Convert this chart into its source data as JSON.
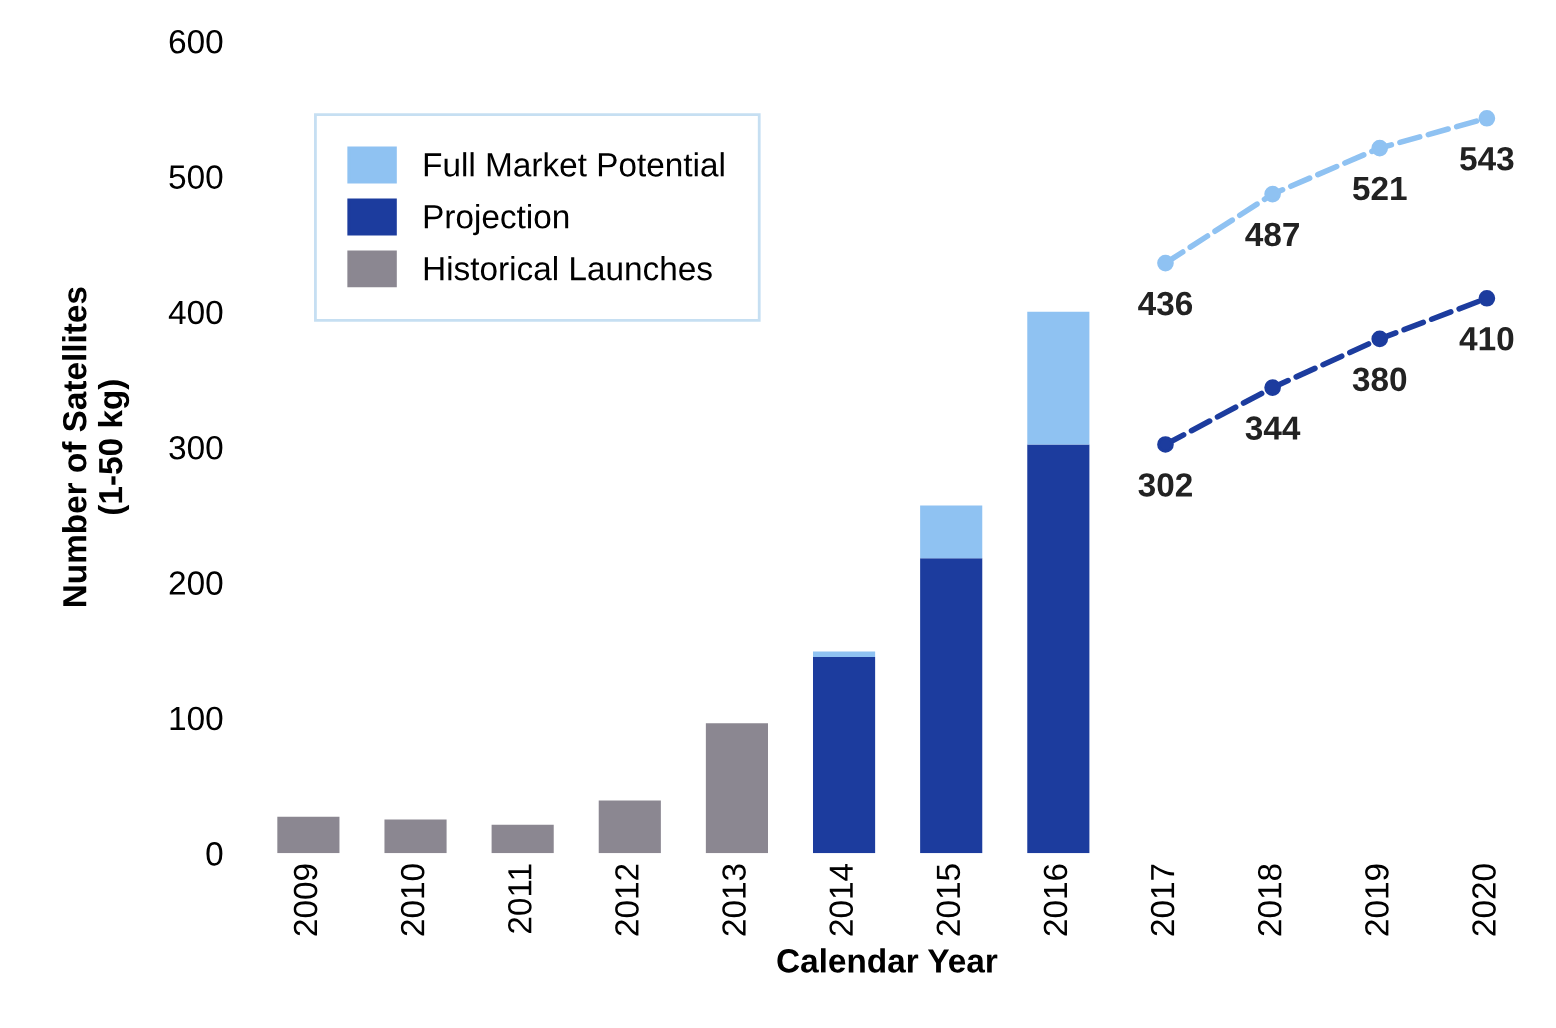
{
  "chart_data": {
    "type": "bar",
    "stacked": true,
    "xlabel": "Calendar Year",
    "ylabel": "Number of Satellites\n(1-50 kg)",
    "categories": [
      "2009",
      "2010",
      "2011",
      "2012",
      "2013",
      "2014",
      "2015",
      "2016",
      "2017",
      "2018",
      "2019",
      "2020"
    ],
    "ylim": [
      0,
      600
    ],
    "yticks": [
      0,
      100,
      200,
      300,
      400,
      500,
      600
    ],
    "grid": false,
    "legend": "top left",
    "series": [
      {
        "name": "Historical Launches",
        "color": "#8b8791",
        "values": [
          27,
          25,
          21,
          39,
          96,
          null,
          null,
          null,
          null,
          null,
          null,
          null
        ]
      },
      {
        "name": "Projection",
        "color": "#1c3c9e",
        "values": [
          null,
          null,
          null,
          null,
          null,
          145,
          218,
          302,
          null,
          null,
          null,
          null
        ]
      },
      {
        "name": "Full Market Potential",
        "color": "#8fc2f2",
        "values": [
          null,
          null,
          null,
          null,
          null,
          4,
          39,
          98,
          null,
          null,
          null,
          null
        ]
      },
      {
        "type": "line",
        "color": "#8fc2f2",
        "marker": "circle",
        "line_style": "dashed",
        "values": [
          null,
          null,
          null,
          null,
          null,
          null,
          null,
          null,
          436,
          487,
          521,
          543
        ],
        "value_labels": [
          null,
          null,
          null,
          null,
          null,
          null,
          null,
          null,
          "436",
          "487",
          "521",
          "543"
        ]
      },
      {
        "type": "line",
        "color": "#1c3c9e",
        "marker": "circle",
        "line_style": "dashed",
        "values": [
          null,
          null,
          null,
          null,
          null,
          null,
          null,
          null,
          302,
          344,
          380,
          410
        ],
        "value_labels": [
          null,
          null,
          null,
          null,
          null,
          null,
          null,
          null,
          "302",
          "344",
          "380",
          "410"
        ]
      }
    ]
  }
}
